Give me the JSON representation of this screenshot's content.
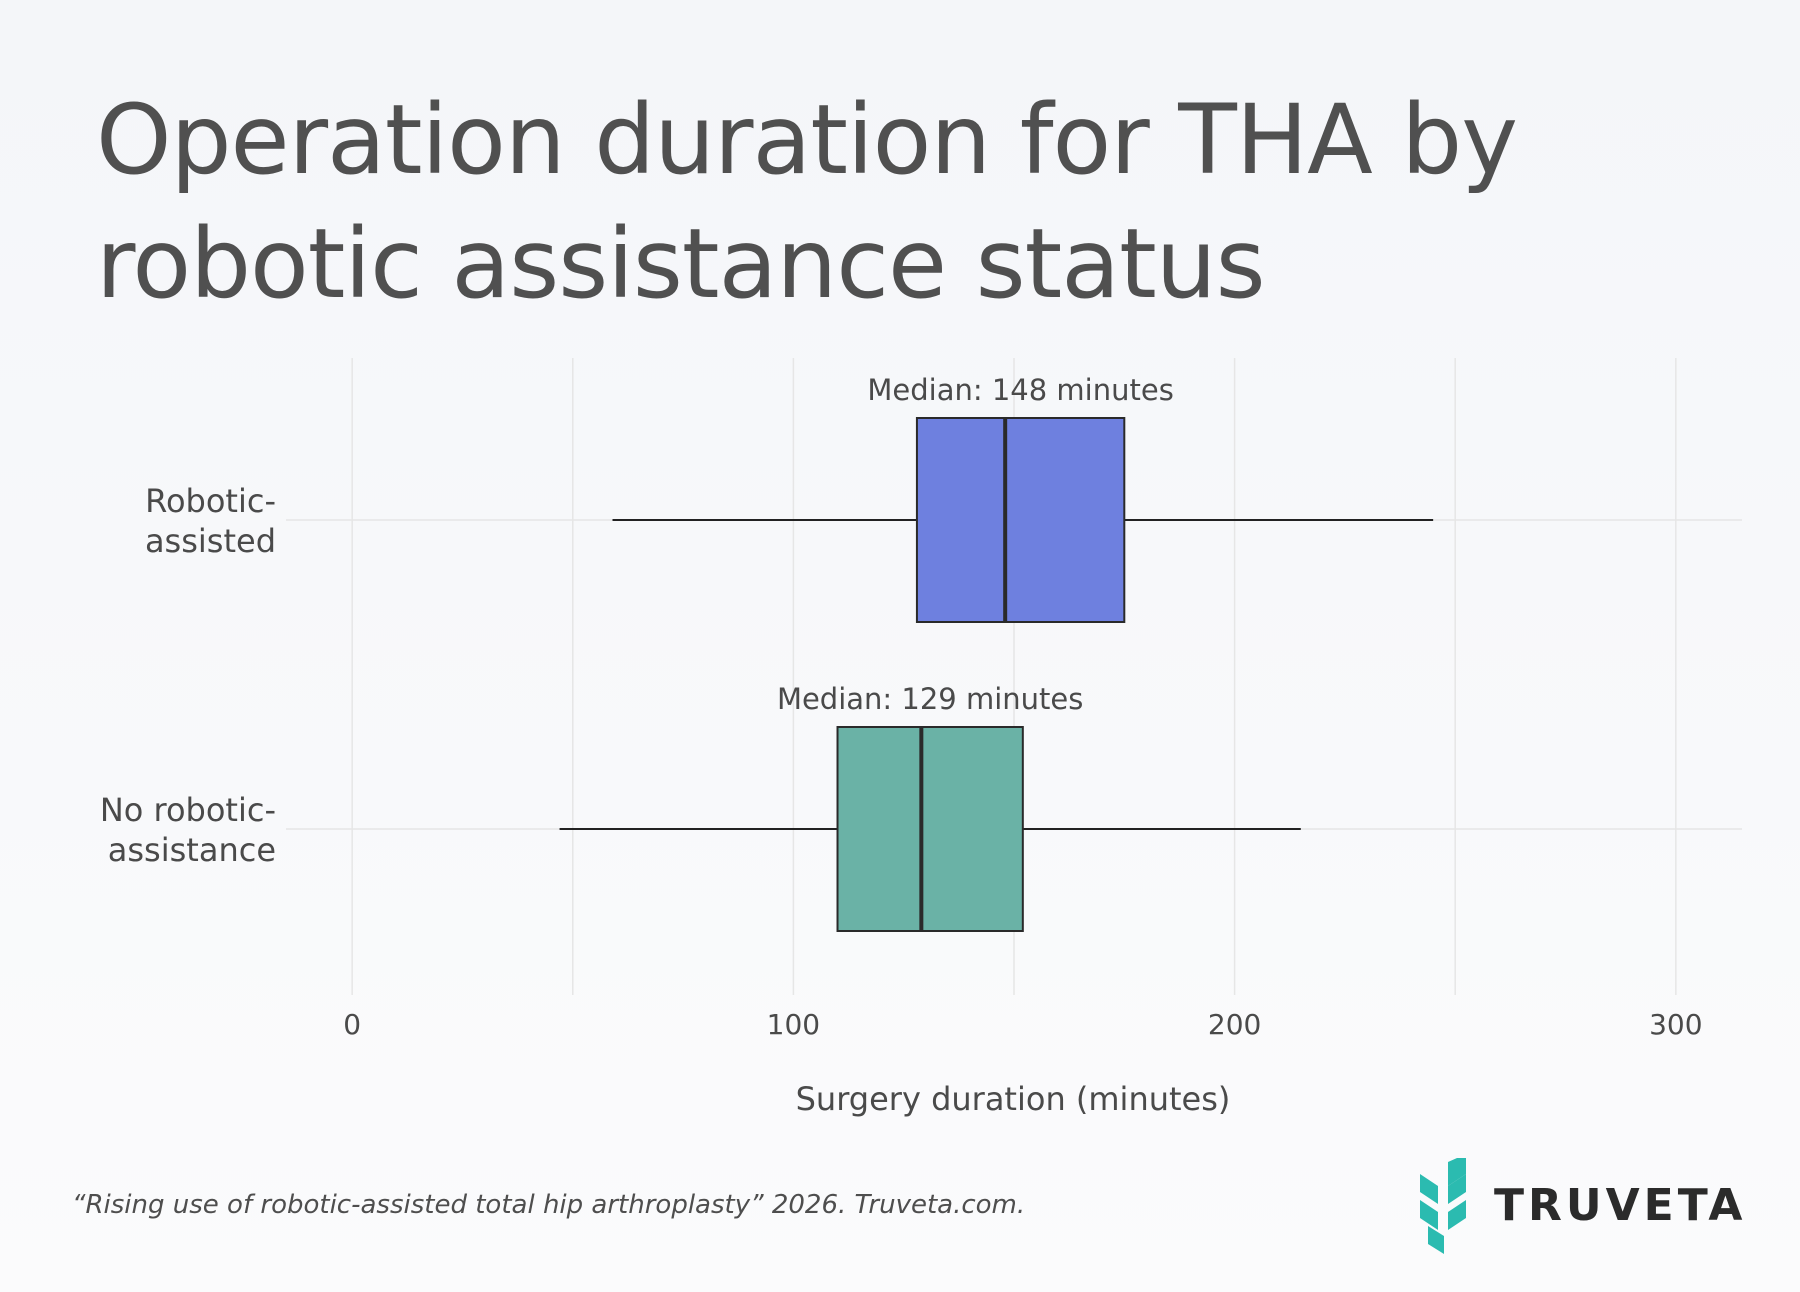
{
  "title": "Operation duration for THA by robotic assistance status",
  "footer": {
    "citation": "“Rising use of robotic-assisted total hip arthroplasty” 2026. Truveta.com."
  },
  "brand": {
    "name": "TRUVETA",
    "logo_icon": "truveta-chevron-logo-icon",
    "logo_color": "#2bbbb0"
  },
  "chart_data": {
    "type": "box",
    "orientation": "horizontal",
    "title": "Operation duration for THA by robotic assistance status",
    "xlabel": "Surgery duration (minutes)",
    "ylabel": "",
    "xlim": [
      -15,
      315
    ],
    "x_ticks": [
      0,
      100,
      200,
      300
    ],
    "x_minor_gridlines": [
      50,
      150,
      250
    ],
    "grid": true,
    "categories": [
      "Robotic-assisted",
      "No robotic-assistance"
    ],
    "category_label_lines": [
      [
        "Robotic-",
        "assisted"
      ],
      [
        "No robotic-",
        "assistance"
      ]
    ],
    "series": [
      {
        "category": "Robotic-assisted",
        "whisker_low": 59,
        "q1": 128,
        "median": 148,
        "q3": 175,
        "whisker_high": 245,
        "color": "#6e80df",
        "annotation": "Median: 148 minutes"
      },
      {
        "category": "No robotic-assistance",
        "whisker_low": 47,
        "q1": 110,
        "median": 129,
        "q3": 152,
        "whisker_high": 215,
        "color": "#6ab2a6",
        "annotation": "Median: 129 minutes"
      }
    ]
  }
}
